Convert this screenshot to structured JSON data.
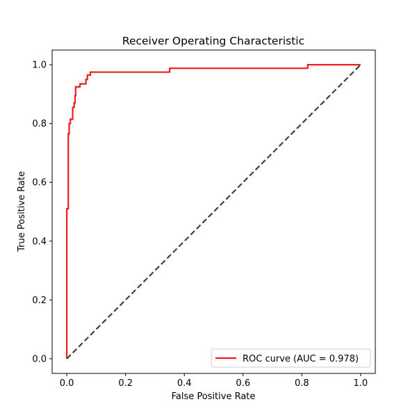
{
  "chart_data": {
    "type": "line",
    "title": "Receiver Operating Characteristic",
    "xlabel": "False Positive Rate",
    "ylabel": "True Positive Rate",
    "xlim": [
      -0.05,
      1.05
    ],
    "ylim": [
      -0.05,
      1.05
    ],
    "x_ticks": [
      0.0,
      0.2,
      0.4,
      0.6,
      0.8,
      1.0
    ],
    "y_ticks": [
      0.0,
      0.2,
      0.4,
      0.6,
      0.8,
      1.0
    ],
    "x_tick_labels": [
      "0.0",
      "0.2",
      "0.4",
      "0.6",
      "0.8",
      "1.0"
    ],
    "y_tick_labels": [
      "0.0",
      "0.2",
      "0.4",
      "0.6",
      "0.8",
      "1.0"
    ],
    "grid": false,
    "legend_position": "lower-right",
    "series": [
      {
        "name": "ROC curve (AUC = 0.978)",
        "color": "#ee1c1c",
        "style": "solid",
        "x": [
          0.0,
          0.0,
          0.005,
          0.005,
          0.008,
          0.008,
          0.012,
          0.012,
          0.02,
          0.02,
          0.025,
          0.025,
          0.028,
          0.028,
          0.03,
          0.03,
          0.045,
          0.045,
          0.065,
          0.065,
          0.07,
          0.07,
          0.08,
          0.08,
          0.35,
          0.35,
          0.82,
          0.82,
          1.0
        ],
        "y": [
          0.0,
          0.51,
          0.51,
          0.765,
          0.765,
          0.8,
          0.8,
          0.815,
          0.815,
          0.855,
          0.855,
          0.87,
          0.87,
          0.895,
          0.895,
          0.925,
          0.925,
          0.935,
          0.935,
          0.95,
          0.95,
          0.965,
          0.965,
          0.975,
          0.975,
          0.988,
          0.988,
          1.0,
          1.0
        ]
      },
      {
        "color": "#404040",
        "style": "dashed",
        "x": [
          0.0,
          1.0
        ],
        "y": [
          0.0,
          1.0
        ]
      }
    ]
  }
}
